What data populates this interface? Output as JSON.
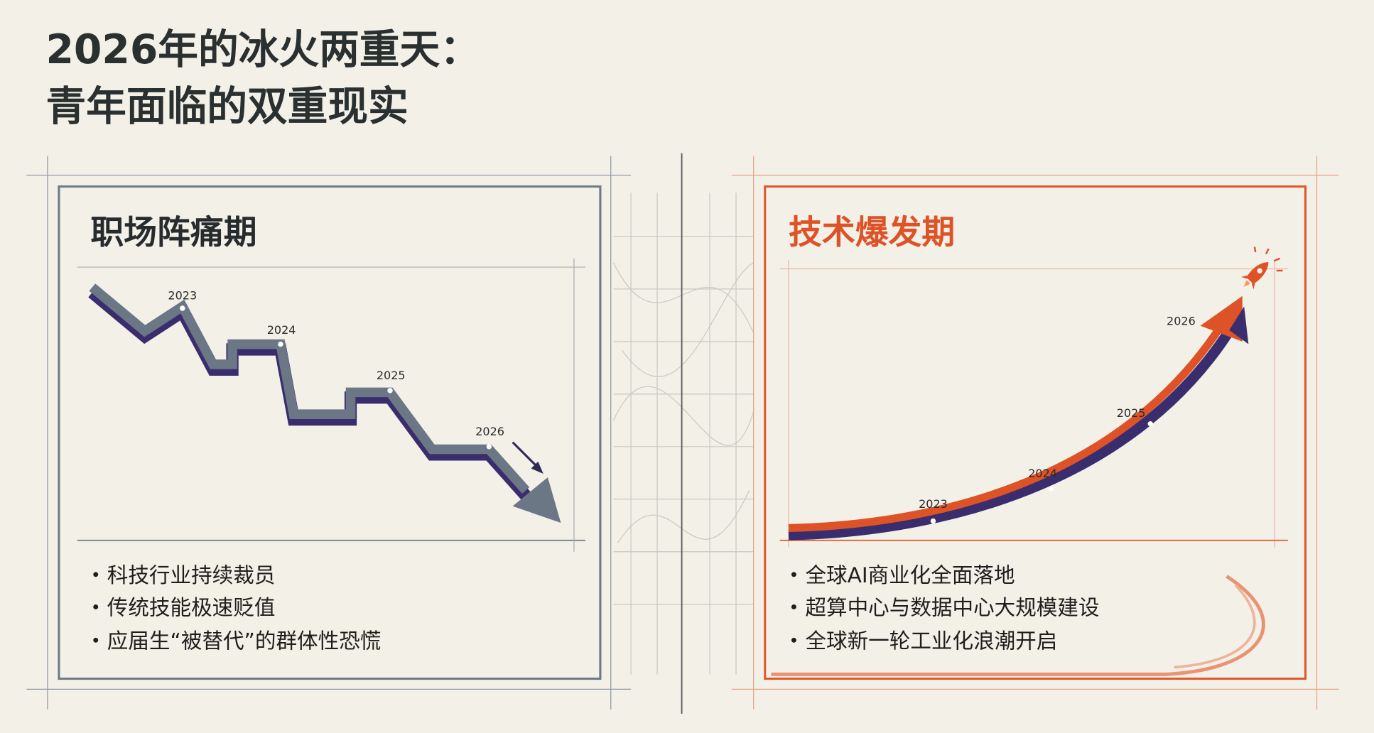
{
  "header": {
    "title_lines": [
      "2026年的冰火两重天：",
      "青年面临的双重现实"
    ]
  },
  "left_panel": {
    "title": "职场阵痛期",
    "years": [
      "2023",
      "2024",
      "2025",
      "2026"
    ],
    "bullets": [
      "科技行业持续裁员",
      "传统技能极速贬值",
      "应届生“被替代”的群体性恐慌"
    ]
  },
  "right_panel": {
    "title": "技术爆发期",
    "years": [
      "2023",
      "2024",
      "2025",
      "2026"
    ],
    "bullets": [
      "全球AI商业化全面落地",
      "超算中心与数据中心大规模建设",
      "全球新一轮工业化浪潮开启"
    ]
  }
}
